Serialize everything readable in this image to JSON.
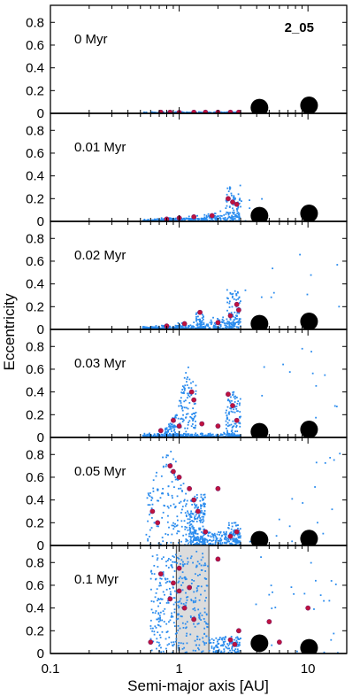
{
  "chart_data": {
    "type": "scatter",
    "run_label": "2_05",
    "xlabel": "Semi-major axis [AU]",
    "ylabel": "Eccentricity",
    "xscale": "log",
    "xlim": [
      0.1,
      20
    ],
    "ylim": [
      0,
      0.95
    ],
    "xticks": [
      {
        "value": 0.1,
        "label": "0.1"
      },
      {
        "value": 1,
        "label": "1"
      },
      {
        "value": 10,
        "label": "10"
      }
    ],
    "yticks": [
      {
        "value": 0,
        "label": "0"
      },
      {
        "value": 0.2,
        "label": "0.2"
      },
      {
        "value": 0.4,
        "label": "0.4"
      },
      {
        "value": 0.6,
        "label": "0.6"
      },
      {
        "value": 0.8,
        "label": "0.8"
      }
    ],
    "colors": {
      "planetesimals": "#2b8cee",
      "embryos": "#c0123c",
      "giants": "#000000",
      "shade": "#dcdcdc"
    },
    "panels": [
      {
        "label": "0 Myr",
        "embryos": [
          [
            0.72,
            0.01
          ],
          [
            0.85,
            0.01
          ],
          [
            1.0,
            0.008
          ],
          [
            1.3,
            0.01
          ],
          [
            1.6,
            0.01
          ],
          [
            2.0,
            0.01
          ],
          [
            2.5,
            0.01
          ],
          [
            2.9,
            0.01
          ]
        ],
        "giants": [
          [
            4.2,
            0.05
          ],
          [
            10.2,
            0.07
          ]
        ]
      },
      {
        "label": "0.01 Myr",
        "embryos": [
          [
            0.8,
            0.02
          ],
          [
            1.0,
            0.03
          ],
          [
            1.3,
            0.04
          ],
          [
            1.8,
            0.05
          ],
          [
            2.4,
            0.2
          ],
          [
            2.6,
            0.17
          ],
          [
            2.8,
            0.15
          ]
        ],
        "giants": [
          [
            4.2,
            0.05
          ],
          [
            10.2,
            0.07
          ]
        ]
      },
      {
        "label": "0.02 Myr",
        "embryos": [
          [
            0.8,
            0.03
          ],
          [
            1.1,
            0.05
          ],
          [
            1.45,
            0.15
          ],
          [
            2.0,
            0.06
          ],
          [
            2.5,
            0.12
          ],
          [
            2.8,
            0.22
          ],
          [
            2.9,
            0.17
          ]
        ],
        "giants": [
          [
            4.2,
            0.05
          ],
          [
            10.2,
            0.07
          ]
        ]
      },
      {
        "label": "0.03 Myr",
        "embryos": [
          [
            0.72,
            0.06
          ],
          [
            0.9,
            0.15
          ],
          [
            1.0,
            0.1
          ],
          [
            1.25,
            0.4
          ],
          [
            1.3,
            0.33
          ],
          [
            1.5,
            0.12
          ],
          [
            2.0,
            0.1
          ],
          [
            2.4,
            0.38
          ],
          [
            2.6,
            0.28
          ],
          [
            2.8,
            0.15
          ]
        ],
        "giants": [
          [
            4.2,
            0.05
          ],
          [
            10.2,
            0.07
          ]
        ]
      },
      {
        "label": "0.05 Myr",
        "embryos": [
          [
            0.62,
            0.3
          ],
          [
            0.68,
            0.2
          ],
          [
            0.85,
            0.7
          ],
          [
            0.9,
            0.65
          ],
          [
            1.0,
            0.6
          ],
          [
            1.2,
            0.5
          ],
          [
            1.3,
            0.4
          ],
          [
            1.4,
            0.3
          ],
          [
            1.6,
            0.12
          ],
          [
            2.0,
            0.5
          ],
          [
            2.5,
            0.08
          ],
          [
            2.8,
            0.12
          ]
        ],
        "giants": [
          [
            4.2,
            0.05
          ],
          [
            10.2,
            0.06
          ]
        ]
      },
      {
        "label": "0.1 Myr",
        "shaded_region": [
          0.95,
          1.7
        ],
        "embryos": [
          [
            0.6,
            0.1
          ],
          [
            0.72,
            0.7
          ],
          [
            0.85,
            0.48
          ],
          [
            0.9,
            0.62
          ],
          [
            1.0,
            0.55
          ],
          [
            1.0,
            0.75
          ],
          [
            1.1,
            0.4
          ],
          [
            1.2,
            0.58
          ],
          [
            1.3,
            0.3
          ],
          [
            2.0,
            0.83
          ],
          [
            2.5,
            0.12
          ],
          [
            2.7,
            0.08
          ],
          [
            2.9,
            0.2
          ],
          [
            5.0,
            0.28
          ],
          [
            6.0,
            0.1
          ],
          [
            10.0,
            0.4
          ]
        ],
        "giants": [
          [
            4.2,
            0.09
          ],
          [
            10.2,
            0.05
          ]
        ]
      }
    ]
  }
}
